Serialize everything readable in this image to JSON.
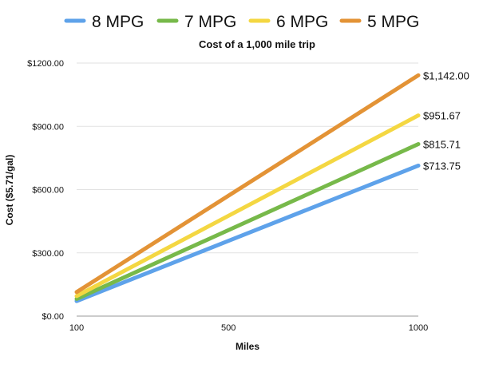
{
  "chart_data": {
    "type": "line",
    "title": "Cost of a 1,000 mile trip",
    "xlabel": "Miles",
    "ylabel": "Cost ($5.71/gal)",
    "x": [
      100,
      500,
      1000
    ],
    "x_tick_labels": [
      "100",
      "500",
      "1000"
    ],
    "ylim": [
      0,
      1200
    ],
    "y_ticks": [
      0,
      300,
      600,
      900,
      1200
    ],
    "y_tick_labels": [
      "$0.00",
      "$300.00",
      "$600.00",
      "$900.00",
      "$1200.00"
    ],
    "grid": true,
    "legend_position": "top",
    "series": [
      {
        "name": "8 MPG",
        "color": "#5ea2ea",
        "values": [
          71.38,
          356.88,
          713.75
        ],
        "end_label": "$713.75"
      },
      {
        "name": "7 MPG",
        "color": "#77b94a",
        "values": [
          81.57,
          407.86,
          815.71
        ],
        "end_label": "$815.71"
      },
      {
        "name": "6 MPG",
        "color": "#f4d742",
        "values": [
          95.17,
          475.83,
          951.67
        ],
        "end_label": "$951.67"
      },
      {
        "name": "5 MPG",
        "color": "#e39336",
        "values": [
          114.2,
          571.0,
          1142.0
        ],
        "end_label": "$1,142.00"
      }
    ]
  }
}
